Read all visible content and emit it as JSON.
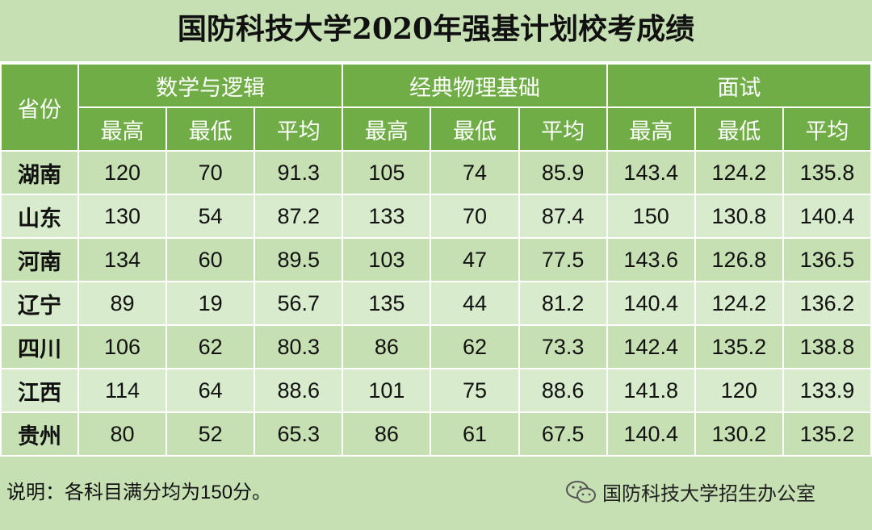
{
  "title": "国防科技大学2020年强基计划校考成绩",
  "table": {
    "header": {
      "province": "省份",
      "groups": [
        {
          "name": "数学与逻辑",
          "columns": [
            "最高",
            "最低",
            "平均"
          ]
        },
        {
          "name": "经典物理基础",
          "columns": [
            "最高",
            "最低",
            "平均"
          ]
        },
        {
          "name": "面试",
          "columns": [
            "最高",
            "最低",
            "平均"
          ]
        }
      ]
    },
    "rows": [
      [
        "湖南",
        120,
        70,
        91.3,
        105,
        74,
        85.9,
        143.4,
        124.2,
        135.8
      ],
      [
        "山东",
        130,
        54,
        87.2,
        133,
        70,
        87.4,
        150,
        130.8,
        140.4
      ],
      [
        "河南",
        134,
        60,
        89.5,
        103,
        47,
        77.5,
        143.6,
        126.8,
        136.5
      ],
      [
        "辽宁",
        89,
        19,
        56.7,
        135,
        44,
        81.2,
        140.4,
        124.2,
        136.2
      ],
      [
        "四川",
        106,
        62,
        80.3,
        86,
        62,
        73.3,
        142.4,
        135.2,
        138.8
      ],
      [
        "江西",
        114,
        64,
        88.6,
        101,
        75,
        88.6,
        141.8,
        120,
        133.9
      ],
      [
        "贵州",
        80,
        52,
        65.3,
        86,
        61,
        67.5,
        140.4,
        130.2,
        135.2
      ]
    ]
  },
  "note": "说明：各科目满分均为150分。",
  "watermark": "国防科技大学招生办公室"
}
